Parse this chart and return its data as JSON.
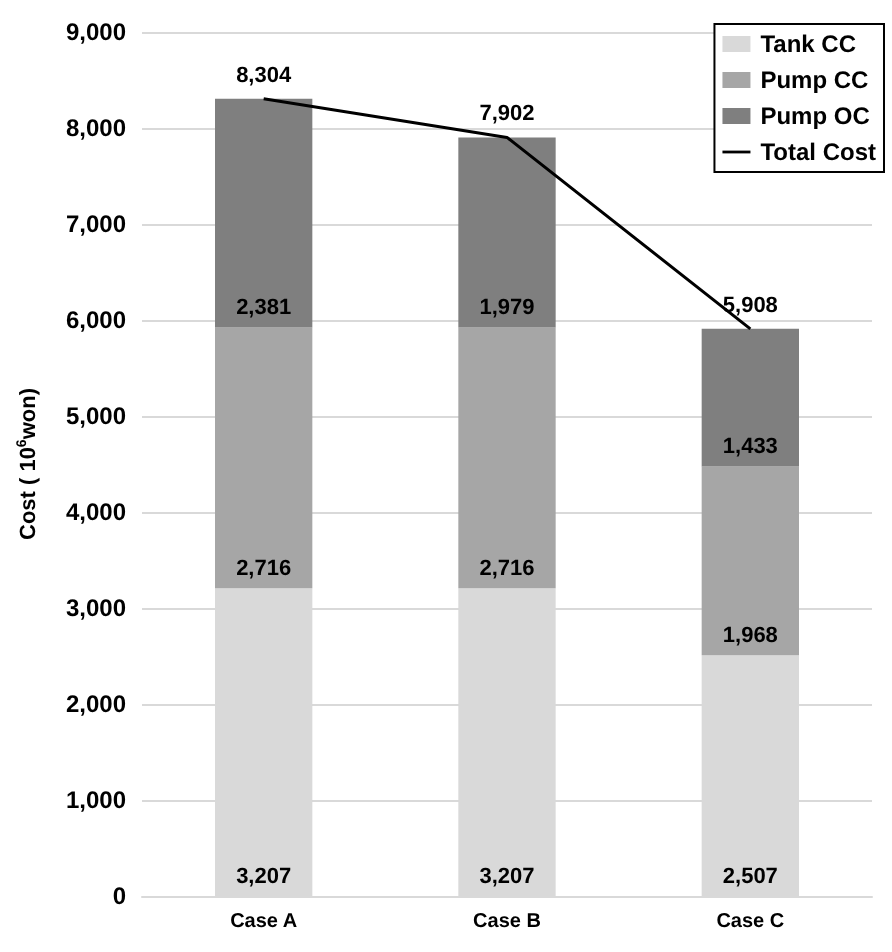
{
  "chart_data": {
    "type": "bar",
    "stacked": true,
    "categories": [
      "Case A",
      "Case B",
      "Case C"
    ],
    "ylabel": "Cost ( 10$^{6}$won)",
    "ylim": [
      0,
      9000
    ],
    "yticks": [
      0,
      {
        "value": 1000,
        "label": "1,000"
      },
      {
        "value": 2000,
        "label": "2,000"
      },
      {
        "value": 3000,
        "label": "3,000"
      },
      {
        "value": 4000,
        "label": "4,000"
      },
      {
        "value": 5000,
        "label": "5,000"
      },
      {
        "value": 6000,
        "label": "6,000"
      },
      {
        "value": 7000,
        "label": "7,000"
      },
      {
        "value": 8000,
        "label": "8,000"
      },
      {
        "value": 9000,
        "label": "9,000"
      }
    ],
    "grid": "y",
    "legend": "top right",
    "marker": "none",
    "series": [
      {
        "name": "Tank CC",
        "color": "#d9d9d9",
        "values": [
          3207,
          3207,
          2507
        ],
        "value_labels": [
          "3,207",
          "3,207",
          "2,507"
        ]
      },
      {
        "name": "Pump CC",
        "color": "#a6a6a6",
        "values": [
          2716,
          2716,
          1968
        ],
        "value_labels": [
          "2,716",
          "2,716",
          "1,968"
        ]
      },
      {
        "name": "Pump OC",
        "color": "#7f7f7f",
        "values": [
          2381,
          1979,
          1433
        ],
        "value_labels": [
          "2,381",
          "1,979",
          "1,433"
        ]
      },
      {
        "name": "Total Cost",
        "type": "line",
        "color": "#000000",
        "values": [
          8304,
          7902,
          5908
        ],
        "value_labels": [
          "8,304",
          "7,902",
          "5,908"
        ]
      }
    ]
  }
}
